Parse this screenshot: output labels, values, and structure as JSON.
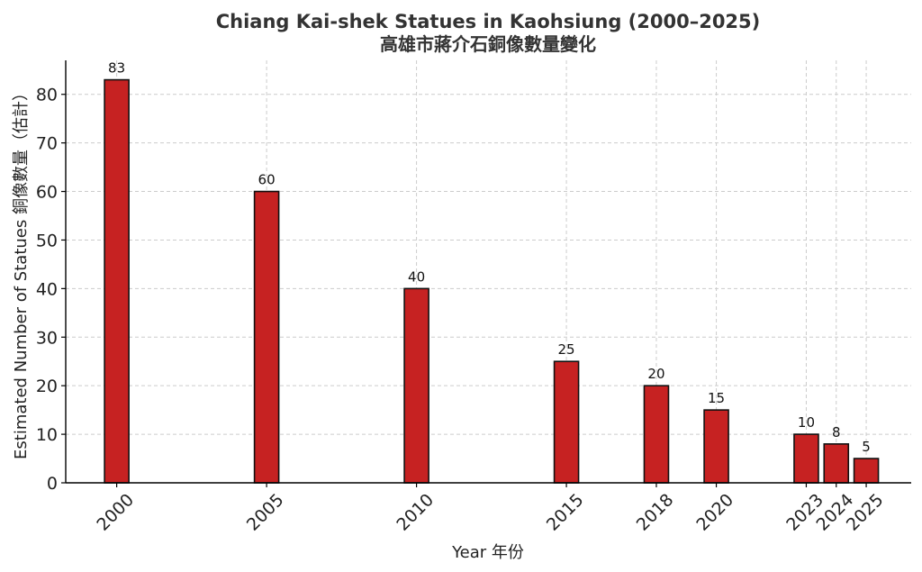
{
  "chart_data": {
    "type": "bar",
    "title": "Chiang Kai-shek Statues in Kaohsiung (2000–2025)",
    "subtitle": "高雄市蔣介石銅像數量變化",
    "xlabel": "Year 年份",
    "ylabel": "Estimated Number of Statues 銅像數量（估計）",
    "x": [
      2000,
      2005,
      2010,
      2015,
      2018,
      2020,
      2023,
      2024,
      2025
    ],
    "categories": [
      "2000",
      "2005",
      "2010",
      "2015",
      "2018",
      "2020",
      "2023",
      "2024",
      "2025"
    ],
    "values": [
      83,
      60,
      40,
      25,
      20,
      15,
      10,
      8,
      5
    ],
    "data_labels": [
      "83",
      "60",
      "40",
      "25",
      "20",
      "15",
      "10",
      "8",
      "5"
    ],
    "xlim": [
      1998.3,
      2026.5
    ],
    "ylim": [
      0,
      87
    ],
    "yticks": [
      0,
      10,
      20,
      30,
      40,
      50,
      60,
      70,
      80
    ],
    "grid": true,
    "colors": {
      "bar": "#c62222",
      "bar_edge": "#111111",
      "grid": "#cccccc",
      "axis": "#000000"
    }
  }
}
